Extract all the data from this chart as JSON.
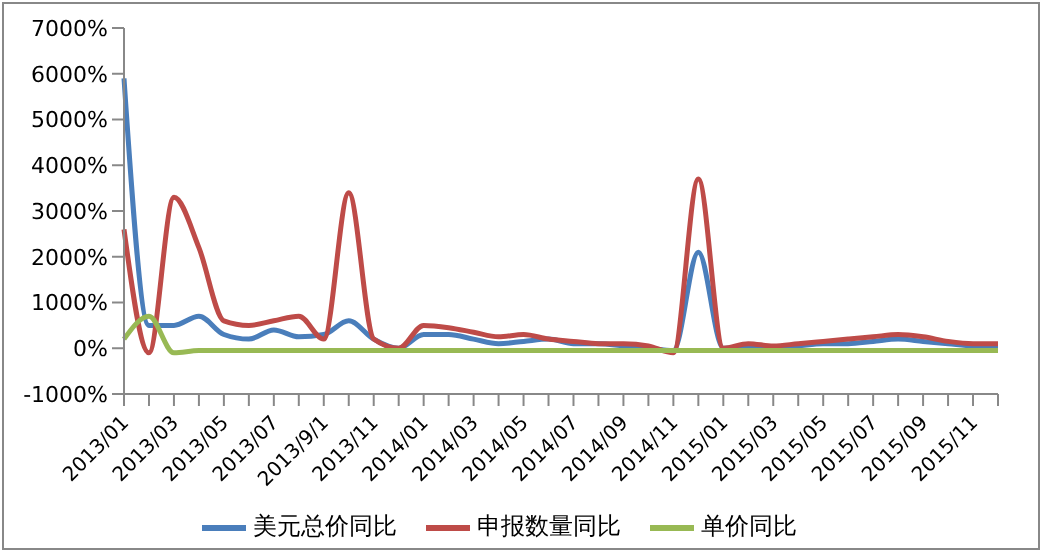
{
  "chart_data": {
    "type": "line",
    "categories": [
      "2013/01",
      null,
      "2013/03",
      null,
      "2013/05",
      null,
      "2013/07",
      null,
      "2013/9/1",
      null,
      "2013/11",
      null,
      "2014/01",
      null,
      "2014/03",
      null,
      "2014/05",
      null,
      "2014/07",
      null,
      "2014/09",
      null,
      "2014/11",
      null,
      "2015/01",
      null,
      "2015/03",
      null,
      "2015/05",
      null,
      "2015/07",
      null,
      "2015/09",
      null,
      "2015/11",
      null
    ],
    "series": [
      {
        "name": "美元总价同比",
        "color": "#4a7ebb",
        "values": [
          5900,
          500,
          500,
          700,
          300,
          200,
          400,
          250,
          300,
          600,
          200,
          0,
          300,
          300,
          200,
          100,
          150,
          200,
          100,
          100,
          50,
          0,
          -50,
          2100,
          0,
          50,
          0,
          50,
          100,
          100,
          150,
          200,
          150,
          100,
          50,
          50
        ]
      },
      {
        "name": "申报数量同比",
        "color": "#be4b48",
        "values": [
          2600,
          -100,
          3300,
          2200,
          600,
          500,
          600,
          700,
          200,
          3400,
          200,
          0,
          500,
          450,
          350,
          250,
          300,
          200,
          150,
          100,
          100,
          50,
          -100,
          3700,
          0,
          100,
          50,
          100,
          150,
          200,
          250,
          300,
          250,
          150,
          100,
          100
        ]
      },
      {
        "name": "单价同比",
        "color": "#98b954",
        "values": [
          200,
          700,
          -100,
          -50,
          -50,
          -50,
          -50,
          -50,
          -50,
          -50,
          -50,
          -50,
          -50,
          -50,
          -50,
          -50,
          -50,
          -50,
          -50,
          -50,
          -50,
          -50,
          -50,
          -50,
          -50,
          -50,
          -50,
          -50,
          -50,
          -50,
          -50,
          -50,
          -50,
          -50,
          -50,
          -50
        ]
      }
    ],
    "ylim": [
      -1000,
      7000
    ],
    "yticks": [
      {
        "value": -1000,
        "label": "-1000%"
      },
      {
        "value": 0,
        "label": "0%"
      },
      {
        "value": 1000,
        "label": "1000%"
      },
      {
        "value": 2000,
        "label": "2000%"
      },
      {
        "value": 3000,
        "label": "3000%"
      },
      {
        "value": 4000,
        "label": "4000%"
      },
      {
        "value": 5000,
        "label": "5000%"
      },
      {
        "value": 6000,
        "label": "6000%"
      },
      {
        "value": 7000,
        "label": "7000%"
      }
    ],
    "legend": "bottom",
    "grid": false,
    "marker": "none",
    "line_style": "solid"
  }
}
